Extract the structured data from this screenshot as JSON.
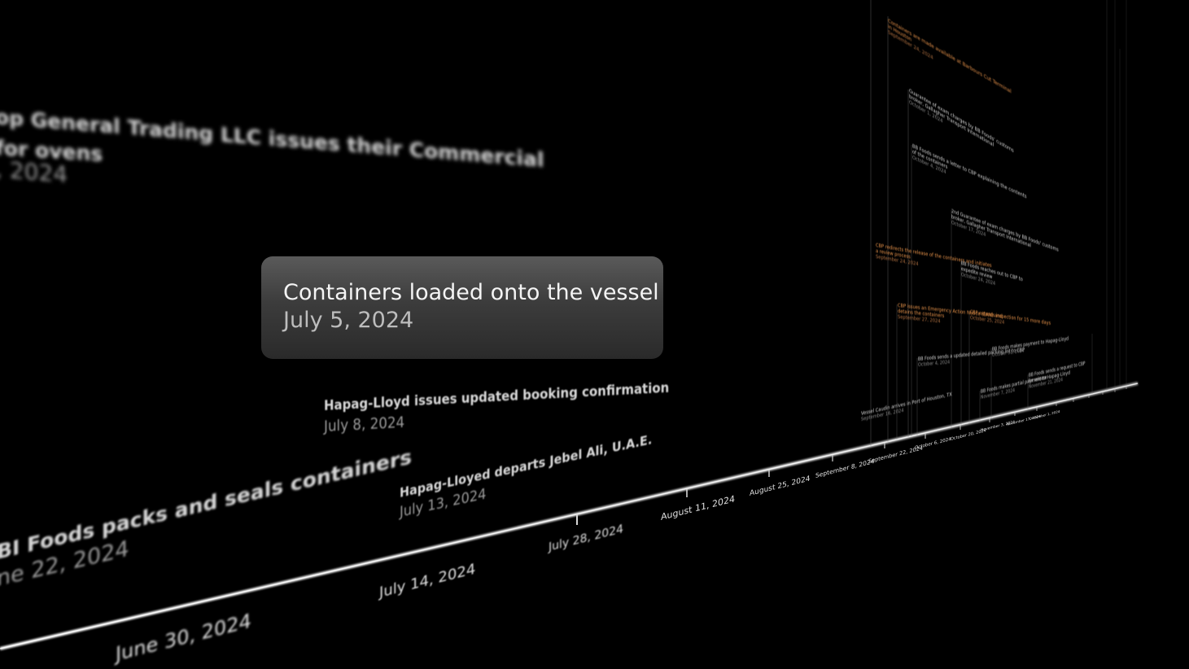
{
  "tooltip": {
    "title": "Containers loaded onto the vessel",
    "date": "July 5, 2024"
  },
  "events_near": [
    {
      "id": "commercial-invoice",
      "title_line1": "op General Trading LLC issues their Commercial",
      "title_line2": "for ovens",
      "date": ", 2024"
    },
    {
      "id": "packs-seals",
      "title": "BI Foods packs and seals containers",
      "date": "ne 22, 2024"
    },
    {
      "id": "booking-confirmation",
      "title": "Hapag-Lloyd issues updated booking confirmation",
      "date": "July 8, 2024"
    },
    {
      "id": "departs-jebel-ali",
      "title": "Hapag-Lloyed departs Jebel Ali, U.A.E.",
      "date": "July 13, 2024"
    }
  ],
  "axis_ticks": [
    {
      "id": "jun30",
      "label": "June 30, 2024"
    },
    {
      "id": "jul14",
      "label": "July 14, 2024"
    },
    {
      "id": "jul28",
      "label": "July 28, 2024"
    },
    {
      "id": "aug11",
      "label": "August 11, 2024"
    },
    {
      "id": "aug25",
      "label": "August 25, 2024"
    },
    {
      "id": "sep8",
      "label": "September 8, 2024"
    },
    {
      "id": "sep22",
      "label": "September 22, 2024"
    },
    {
      "id": "oct6",
      "label": "October 6, 2024"
    },
    {
      "id": "oct20",
      "label": "October 20, 2024"
    },
    {
      "id": "nov3",
      "label": "November 3, 2024"
    },
    {
      "id": "nov17",
      "label": "November 17, 2024"
    },
    {
      "id": "dec1",
      "label": "December 1, 2024"
    }
  ],
  "events_far": [
    {
      "id": "containers-available",
      "title_line1": "Containers are made available at Barbours Cut Terminal",
      "title_line2": "in Houston",
      "date": "September 24, 2024",
      "accent": "orange"
    },
    {
      "id": "guarantee-1",
      "title_line1": "Guarantee of exam charges by BB Foods' customs",
      "title_line2": "broker, Gallagher Transport International",
      "date": "October 1, 2024",
      "accent": "none"
    },
    {
      "id": "letter-cbp",
      "title_line1": "BB Foods sends a letter to CBP explaining the contents",
      "title_line2": "of the containers",
      "date": "October 4, 2024",
      "accent": "none"
    },
    {
      "id": "guarantee-2",
      "title_line1": "2nd Guarantee of exam charges by BB Foods' customs",
      "title_line2": "broker, Gallagher Transport International",
      "date": "October 17, 2024",
      "accent": "none"
    },
    {
      "id": "cbp-redirects",
      "title_line1": "CBP redirects the release of the containers and initiates",
      "title_line2": "a review process",
      "date": "September 24, 2024",
      "accent": "orange"
    },
    {
      "id": "expedite-review",
      "title_line1": "BB Foods reaches out to CBP to",
      "title_line2": "expedite review",
      "date": "October 24, 2024",
      "accent": "none"
    },
    {
      "id": "emergency-action",
      "title_line1": "CBP issues an Emergency Action Notice (EAN) and",
      "title_line2": "detains the containers",
      "date": "September 27, 2024",
      "accent": "orange"
    },
    {
      "id": "cbp-extends",
      "title_line1": "CBP extends inspection for 15 more days",
      "title_line2": "",
      "date": "October 25, 2024",
      "accent": "orange"
    },
    {
      "id": "packing-list",
      "title_line1": "BB Foods sends a updated detailed packing list to CBP",
      "title_line2": "",
      "date": "October 4, 2024",
      "accent": "none"
    },
    {
      "id": "vessel-arrives",
      "title_line1": "Vessel Caudin arrives in Port of Houston, TX",
      "title_line2": "",
      "date": "September 16, 2024",
      "accent": "none"
    },
    {
      "id": "payment-hapag",
      "title_line1": "BB Foods makes payment to Hapag-Lloyd",
      "title_line2": "",
      "date": "October 31, 2024",
      "accent": "none"
    },
    {
      "id": "partial-payment",
      "title_line1": "BB Foods makes partial payment to Hapag-Lloyd",
      "title_line2": "",
      "date": "November 7, 2024",
      "accent": "none"
    },
    {
      "id": "request-cbp",
      "title_line1": "BB Foods sends a request to CBP",
      "title_line2": "for release",
      "date": "November 21, 2024",
      "accent": "none"
    }
  ],
  "colors": {
    "background": "#000000",
    "axis": "#e6e6e6",
    "accent_orange": "#e8934a",
    "tooltip_top": "#5a5a5a",
    "tooltip_bottom": "#2a2a2a"
  }
}
